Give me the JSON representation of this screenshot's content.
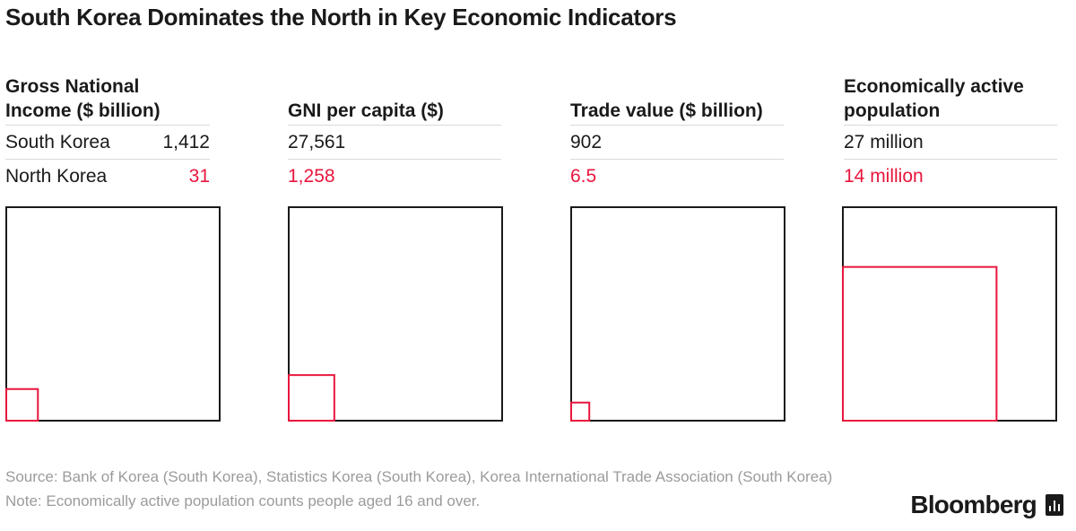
{
  "title": "South Korea Dominates the North in Key Economic Indicators",
  "row_labels": {
    "south": "South Korea",
    "north": "North Korea"
  },
  "colors": {
    "south": "#1a1a1a",
    "north": "#e8163d",
    "rule": "#d9d9d9",
    "footer": "#9b9b9b"
  },
  "chart_data": [
    {
      "type": "area-comparison-squares",
      "title": "Gross National Income ($ billion)",
      "series": [
        {
          "name": "South Korea",
          "value": 1412,
          "display": "1,412"
        },
        {
          "name": "North Korea",
          "value": 31,
          "display": "31"
        }
      ]
    },
    {
      "type": "area-comparison-squares",
      "title": "GNI per capita ($)",
      "series": [
        {
          "name": "South Korea",
          "value": 27561,
          "display": "27,561"
        },
        {
          "name": "North Korea",
          "value": 1258,
          "display": "1,258"
        }
      ]
    },
    {
      "type": "area-comparison-squares",
      "title": "Trade value ($ billion)",
      "series": [
        {
          "name": "South Korea",
          "value": 902,
          "display": "902"
        },
        {
          "name": "North Korea",
          "value": 6.5,
          "display": "6.5"
        }
      ]
    },
    {
      "type": "area-comparison-squares",
      "title": "Economically active population",
      "series": [
        {
          "name": "South Korea",
          "value": 27,
          "display": "27 million"
        },
        {
          "name": "North Korea",
          "value": 14,
          "display": "14 million"
        }
      ]
    }
  ],
  "footer": {
    "source": "Source: Bank of Korea (South Korea), Statistics Korea (South Korea), Korea International Trade Association (South Korea)",
    "note": "Note: Economically active population counts people aged 16 and over."
  },
  "brand": {
    "name": "Bloomberg",
    "icon": "bloomberg-terminal-icon"
  }
}
